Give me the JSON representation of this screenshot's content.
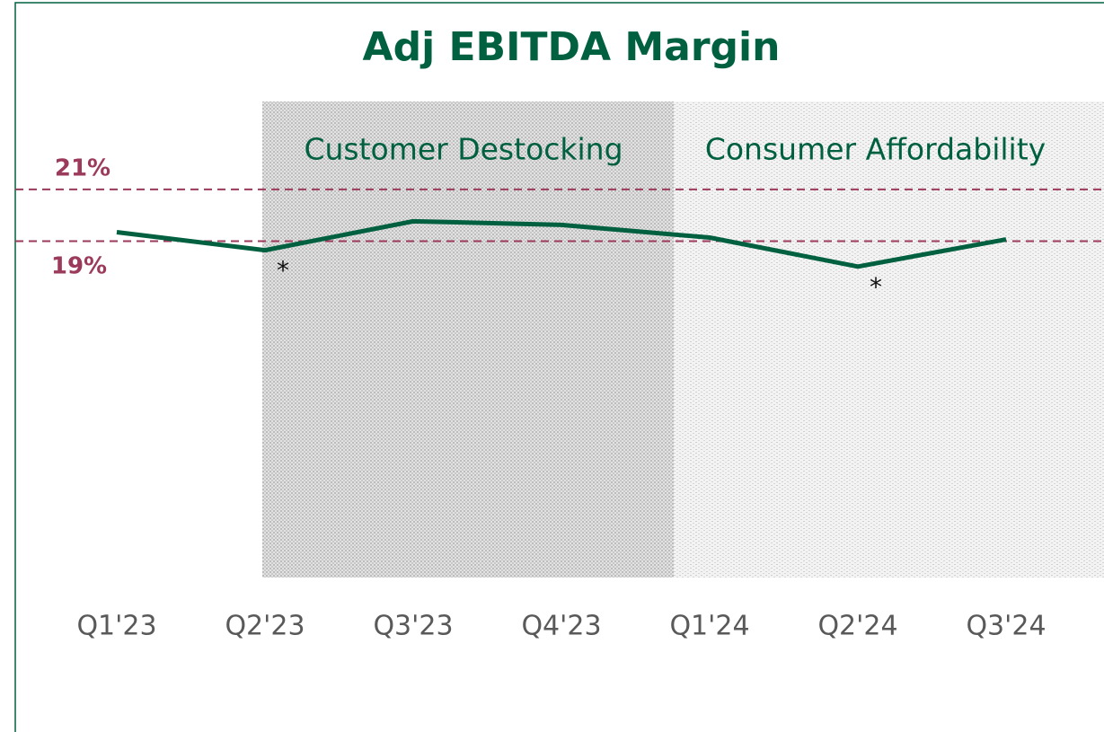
{
  "chart_data": {
    "type": "line",
    "title": "Adj EBITDA Margin",
    "categories": [
      "Q1'23",
      "Q2'23",
      "Q3'23",
      "Q4'23",
      "Q1'24",
      "Q2'24",
      "Q3'24"
    ],
    "values": [
      19.35,
      18.65,
      19.77,
      19.63,
      19.14,
      18.02,
      19.07
    ],
    "color": "#00603f",
    "ylim": [
      6,
      24.4
    ],
    "reference_lines": [
      {
        "value": 21,
        "label": "21%",
        "color": "#9b3a5a"
      },
      {
        "value": 19,
        "label": "19%",
        "color": "#9b3a5a"
      }
    ],
    "regions": [
      {
        "label": "Customer Destocking"
      },
      {
        "label": "Consumer Affordability"
      }
    ],
    "annotations": [
      {
        "text": "*",
        "category": 1
      },
      {
        "text": "*",
        "category": 5
      }
    ]
  }
}
